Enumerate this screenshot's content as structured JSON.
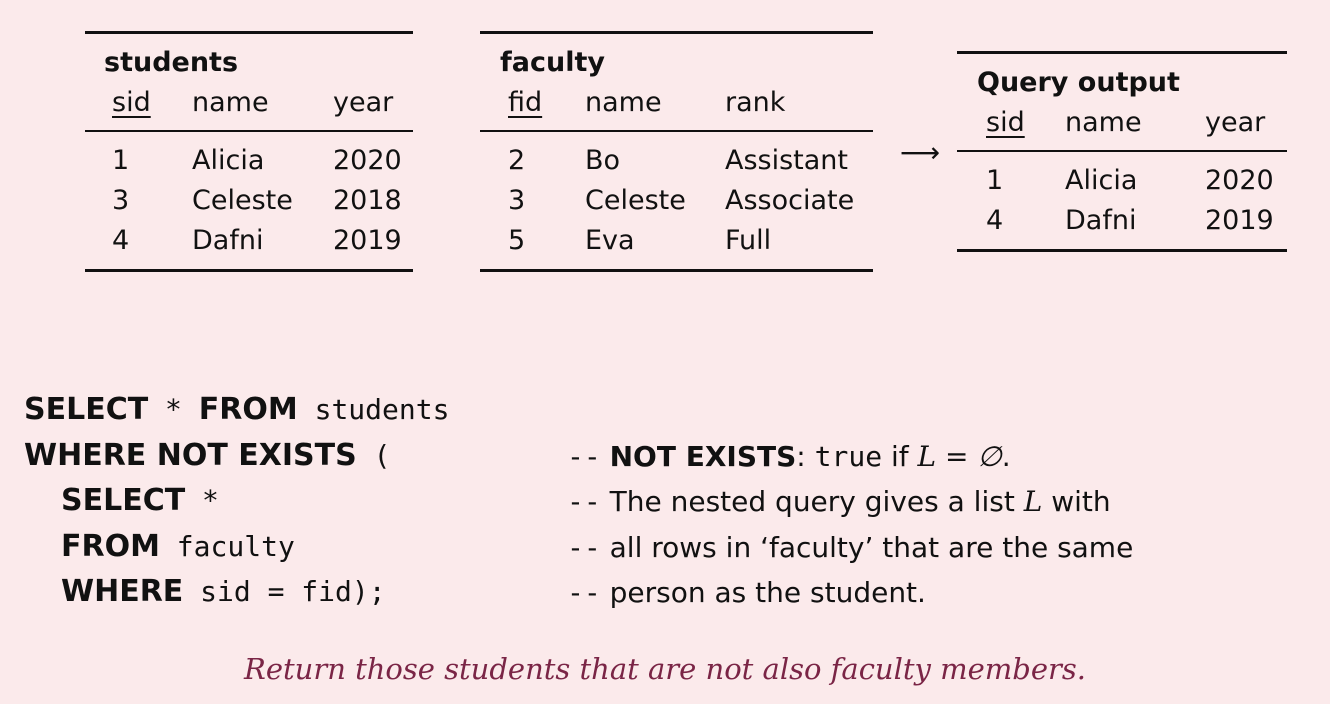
{
  "tables": {
    "students": {
      "title": "students",
      "columns": [
        "sid",
        "name",
        "year"
      ],
      "rows": [
        [
          "1",
          "Alicia",
          "2020"
        ],
        [
          "3",
          "Celeste",
          "2018"
        ],
        [
          "4",
          "Dafni",
          "2019"
        ]
      ]
    },
    "faculty": {
      "title": "faculty",
      "columns": [
        "fid",
        "name",
        "rank"
      ],
      "rows": [
        [
          "2",
          "Bo",
          "Assistant"
        ],
        [
          "3",
          "Celeste",
          "Associate"
        ],
        [
          "5",
          "Eva",
          "Full"
        ]
      ]
    },
    "output": {
      "title": "Query output",
      "columns": [
        "sid",
        "name",
        "year"
      ],
      "rows": [
        [
          "1",
          "Alicia",
          "2020"
        ],
        [
          "4",
          "Dafni",
          "2019"
        ]
      ]
    }
  },
  "arrow": "⟶",
  "sql": {
    "l1_kw1": "SELECT",
    "l1_code": " * ",
    "l1_kw2": "FROM",
    "l1_code2": " students",
    "l2_kw": "WHERE NOT EXISTS",
    "l2_code": " (",
    "l3_kw": "SELECT",
    "l3_code": " *",
    "l4_kw": "FROM",
    "l4_code": " faculty",
    "l5_kw": "WHERE",
    "l5_code": " sid = fid);"
  },
  "comments": {
    "dash": "--",
    "c1_bold": "NOT EXISTS",
    "c1_colon": ": ",
    "c1_tt": "true",
    "c1_rest": " if ",
    "c1_math": "L = ∅",
    "c1_end": ".",
    "c2_a": "The nested query gives a list ",
    "c2_math": "L",
    "c2_b": " with",
    "c3": "all rows in ‘faculty’ that are the same",
    "c4": "person as the student."
  },
  "caption": "Return those students that are not also faculty members."
}
